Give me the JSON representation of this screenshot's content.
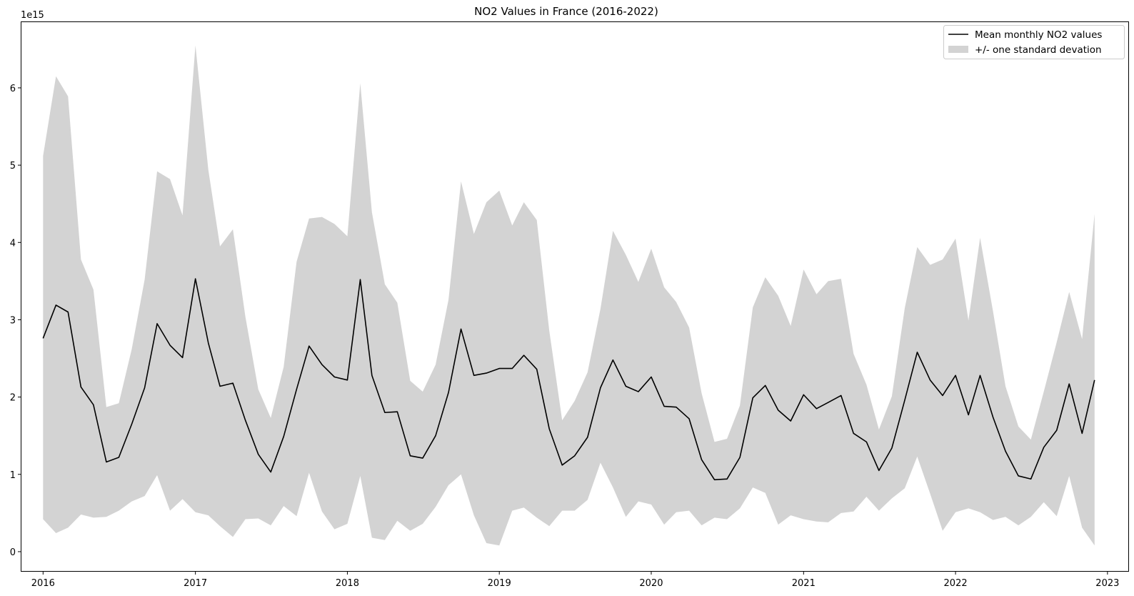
{
  "chart_data": {
    "type": "line",
    "title": "NO2 Values in France (2016-2022)",
    "xlabel": "",
    "ylabel": "",
    "y_scale_label": "1e15",
    "y_unit": 1000000000000000.0,
    "x_ticks": [
      "2016",
      "2017",
      "2018",
      "2019",
      "2020",
      "2021",
      "2022",
      "2023"
    ],
    "y_ticks": [
      0,
      1,
      2,
      3,
      4,
      5,
      6
    ],
    "xlim": [
      "2015-11-10",
      "2023-02-20"
    ],
    "ylim": [
      -0.25,
      6.85
    ],
    "grid": false,
    "legend_position": "top-right",
    "legend": {
      "line_label": "Mean monthly NO2 values",
      "band_label": "+/- one standard devation"
    },
    "colors": {
      "line": "#000000",
      "band": "#d3d3d3"
    },
    "x": [
      "2016-01",
      "2016-02",
      "2016-03",
      "2016-04",
      "2016-05",
      "2016-06",
      "2016-07",
      "2016-08",
      "2016-09",
      "2016-10",
      "2016-11",
      "2016-12",
      "2017-01",
      "2017-02",
      "2017-03",
      "2017-04",
      "2017-05",
      "2017-06",
      "2017-07",
      "2017-08",
      "2017-09",
      "2017-10",
      "2017-11",
      "2017-12",
      "2018-01",
      "2018-02",
      "2018-03",
      "2018-04",
      "2018-05",
      "2018-06",
      "2018-07",
      "2018-08",
      "2018-09",
      "2018-10",
      "2018-11",
      "2018-12",
      "2019-01",
      "2019-02",
      "2019-03",
      "2019-04",
      "2019-05",
      "2019-06",
      "2019-07",
      "2019-08",
      "2019-09",
      "2019-10",
      "2019-11",
      "2019-12",
      "2020-01",
      "2020-02",
      "2020-03",
      "2020-04",
      "2020-05",
      "2020-06",
      "2020-07",
      "2020-08",
      "2020-09",
      "2020-10",
      "2020-11",
      "2020-12",
      "2021-01",
      "2021-02",
      "2021-03",
      "2021-04",
      "2021-05",
      "2021-06",
      "2021-07",
      "2021-08",
      "2021-09",
      "2021-10",
      "2021-11",
      "2021-12",
      "2022-01",
      "2022-02",
      "2022-03",
      "2022-04",
      "2022-05",
      "2022-06",
      "2022-07",
      "2022-08",
      "2022-09",
      "2022-10",
      "2022-11",
      "2022-12"
    ],
    "series": [
      {
        "name": "Mean monthly NO2 values",
        "values": [
          2.76,
          3.19,
          3.1,
          2.13,
          1.9,
          1.16,
          1.22,
          1.65,
          2.12,
          2.95,
          2.67,
          2.51,
          3.53,
          2.7,
          2.14,
          2.18,
          1.7,
          1.26,
          1.03,
          1.49,
          2.1,
          2.66,
          2.42,
          2.26,
          2.22,
          3.52,
          2.28,
          1.8,
          1.81,
          1.24,
          1.21,
          1.5,
          2.06,
          2.88,
          2.28,
          2.31,
          2.37,
          2.37,
          2.54,
          2.36,
          1.59,
          1.12,
          1.24,
          1.48,
          2.12,
          2.48,
          2.14,
          2.07,
          2.26,
          1.88,
          1.87,
          1.72,
          1.19,
          0.93,
          0.94,
          1.22,
          1.99,
          2.15,
          1.83,
          1.69,
          2.03,
          1.85,
          1.93,
          2.02,
          1.53,
          1.42,
          1.05,
          1.34,
          1.96,
          2.58,
          2.22,
          2.02,
          2.28,
          1.77,
          2.28,
          1.74,
          1.3,
          0.98,
          0.94,
          1.35,
          1.57,
          2.17,
          1.53,
          2.22
        ]
      },
      {
        "name": "+/- one standard devation",
        "upper": [
          5.12,
          6.15,
          5.89,
          3.78,
          3.39,
          1.87,
          1.92,
          2.62,
          3.52,
          4.92,
          4.82,
          4.35,
          6.55,
          4.94,
          3.95,
          4.17,
          3.04,
          2.1,
          1.73,
          2.39,
          3.75,
          4.31,
          4.33,
          4.24,
          4.08,
          6.06,
          4.39,
          3.46,
          3.22,
          2.21,
          2.07,
          2.42,
          3.26,
          4.79,
          4.11,
          4.52,
          4.67,
          4.22,
          4.52,
          4.29,
          2.86,
          1.7,
          1.95,
          2.32,
          3.14,
          4.15,
          3.84,
          3.49,
          3.92,
          3.42,
          3.23,
          2.9,
          2.05,
          1.42,
          1.46,
          1.89,
          3.16,
          3.55,
          3.31,
          2.92,
          3.65,
          3.33,
          3.5,
          3.53,
          2.56,
          2.16,
          1.58,
          2.01,
          3.15,
          3.94,
          3.71,
          3.78,
          4.05,
          2.99,
          4.06,
          3.11,
          2.14,
          1.62,
          1.45,
          2.07,
          2.71,
          3.36,
          2.75,
          4.37
        ],
        "lower": [
          0.42,
          0.24,
          0.31,
          0.48,
          0.44,
          0.45,
          0.53,
          0.65,
          0.72,
          0.99,
          0.53,
          0.68,
          0.51,
          0.47,
          0.33,
          0.19,
          0.42,
          0.43,
          0.34,
          0.59,
          0.46,
          1.02,
          0.52,
          0.29,
          0.36,
          0.98,
          0.18,
          0.15,
          0.4,
          0.27,
          0.36,
          0.58,
          0.86,
          1.0,
          0.47,
          0.11,
          0.08,
          0.53,
          0.57,
          0.44,
          0.33,
          0.53,
          0.53,
          0.67,
          1.15,
          0.83,
          0.45,
          0.65,
          0.61,
          0.35,
          0.51,
          0.53,
          0.34,
          0.44,
          0.42,
          0.56,
          0.83,
          0.76,
          0.35,
          0.47,
          0.42,
          0.39,
          0.38,
          0.5,
          0.52,
          0.71,
          0.53,
          0.69,
          0.82,
          1.23,
          0.75,
          0.27,
          0.51,
          0.56,
          0.51,
          0.41,
          0.45,
          0.34,
          0.45,
          0.64,
          0.46,
          0.98,
          0.31,
          0.08
        ]
      }
    ]
  }
}
